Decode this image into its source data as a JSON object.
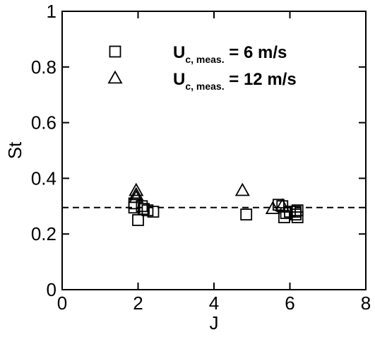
{
  "chart_data": {
    "type": "scatter",
    "xlabel": "J",
    "ylabel": "St",
    "xlim": [
      0,
      8
    ],
    "ylim": [
      0,
      1
    ],
    "xticks": [
      0,
      2,
      4,
      6,
      8
    ],
    "yticks": [
      0,
      0.2,
      0.4,
      0.6,
      0.8,
      1
    ],
    "xtick_labels": [
      "0",
      "2",
      "4",
      "6",
      "8"
    ],
    "ytick_labels": [
      "0",
      "0.2",
      "0.4",
      "0.6",
      "0.8",
      "1"
    ],
    "grid": false,
    "legend_position": "top-right",
    "reference_line": {
      "y": 0.295,
      "style": "dashed"
    },
    "series": [
      {
        "marker": "square",
        "legend": {
          "main": "U",
          "sub": "c, meas.",
          "rest": " = 6 m/s"
        },
        "points": [
          {
            "x": 1.9,
            "y": 0.31
          },
          {
            "x": 1.9,
            "y": 0.295
          },
          {
            "x": 2.0,
            "y": 0.25
          },
          {
            "x": 2.1,
            "y": 0.3
          },
          {
            "x": 2.15,
            "y": 0.29
          },
          {
            "x": 2.25,
            "y": 0.285
          },
          {
            "x": 2.4,
            "y": 0.28
          },
          {
            "x": 4.85,
            "y": 0.27
          },
          {
            "x": 5.7,
            "y": 0.305
          },
          {
            "x": 5.8,
            "y": 0.3
          },
          {
            "x": 5.85,
            "y": 0.26
          },
          {
            "x": 5.9,
            "y": 0.275
          },
          {
            "x": 6.0,
            "y": 0.28
          },
          {
            "x": 6.15,
            "y": 0.27
          },
          {
            "x": 6.15,
            "y": 0.28
          },
          {
            "x": 6.2,
            "y": 0.26
          },
          {
            "x": 6.2,
            "y": 0.285
          }
        ]
      },
      {
        "marker": "triangle",
        "legend": {
          "main": "U",
          "sub": "c, meas.",
          "rest": " = 12 m/s"
        },
        "points": [
          {
            "x": 1.95,
            "y": 0.355
          },
          {
            "x": 1.95,
            "y": 0.34
          },
          {
            "x": 1.95,
            "y": 0.33
          },
          {
            "x": 4.75,
            "y": 0.355
          },
          {
            "x": 5.55,
            "y": 0.29
          },
          {
            "x": 5.8,
            "y": 0.3
          }
        ]
      }
    ]
  }
}
